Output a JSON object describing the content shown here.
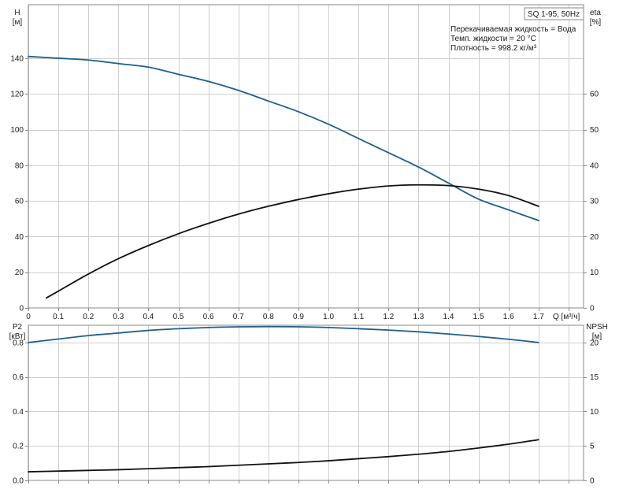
{
  "chart_data": {
    "type": "line",
    "title": "SQ 1-95, 50Hz",
    "notes": [
      "Перекачиваемая жидкость = Вода",
      "Темп. жидкости = 20 °C",
      "Плотность = 998.2 кг/м³"
    ],
    "x_axis": {
      "label": "Q [м³/ч]",
      "range": [
        0,
        1.85
      ],
      "ticks": [
        0,
        0.1,
        0.2,
        0.3,
        0.4,
        0.5,
        0.6,
        0.7,
        0.8,
        0.9,
        1.0,
        1.1,
        1.2,
        1.3,
        1.4,
        1.5,
        1.6,
        1.7
      ],
      "tick_labels": [
        "0",
        "0.1",
        "0.2",
        "0.3",
        "0.4",
        "0.5",
        "0.6",
        "0.7",
        "0.8",
        "0.9",
        "1.0",
        "1.1",
        "1.2",
        "1.3",
        "1.4",
        "1.5",
        "1.6",
        "1.7"
      ]
    },
    "top_panel": {
      "y_left": {
        "label_top": "H",
        "label_bottom": "[м]",
        "range": [
          0,
          170
        ],
        "ticks": [
          0,
          20,
          40,
          60,
          80,
          100,
          120,
          140
        ]
      },
      "y_right": {
        "label_top": "eta",
        "label_bottom": "[%]",
        "range": [
          0,
          85
        ],
        "ticks": [
          0,
          10,
          20,
          30,
          40,
          50,
          60
        ]
      },
      "series": [
        {
          "axis": "left",
          "color": "#1f5f8b",
          "x": [
            0,
            0.1,
            0.2,
            0.3,
            0.4,
            0.5,
            0.6,
            0.7,
            0.8,
            0.9,
            1.0,
            1.1,
            1.2,
            1.3,
            1.4,
            1.5,
            1.6,
            1.7
          ],
          "y": [
            141,
            140,
            139,
            137,
            135,
            131,
            127,
            122,
            116,
            110,
            103,
            95,
            87,
            79,
            70,
            61,
            55,
            49
          ]
        },
        {
          "axis": "right",
          "color": "#111111",
          "x": [
            0.06,
            0.1,
            0.2,
            0.3,
            0.4,
            0.5,
            0.6,
            0.7,
            0.8,
            0.9,
            1.0,
            1.1,
            1.2,
            1.3,
            1.4,
            1.5,
            1.6,
            1.7
          ],
          "y": [
            2.8,
            4.7,
            9.5,
            13.8,
            17.5,
            20.8,
            23.7,
            26.3,
            28.5,
            30.4,
            32.0,
            33.3,
            34.2,
            34.5,
            34.3,
            33.3,
            31.5,
            28.5
          ]
        }
      ]
    },
    "bottom_panel": {
      "y_left": {
        "label_top": "P2",
        "label_bottom": "[кВт]",
        "range": [
          0,
          0.9
        ],
        "ticks": [
          0,
          0.2,
          0.4,
          0.6,
          0.8
        ],
        "tick_labels": [
          "0.0",
          "0.2",
          "0.4",
          "0.6",
          "0.8"
        ]
      },
      "y_right": {
        "label_top": "NPSH",
        "label_bottom": "[м]",
        "range": [
          0,
          22.5
        ],
        "ticks": [
          0,
          5,
          10,
          15,
          20
        ]
      },
      "series": [
        {
          "axis": "left",
          "color": "#1f5f8b",
          "x": [
            0,
            0.1,
            0.2,
            0.3,
            0.4,
            0.5,
            0.6,
            0.7,
            0.8,
            0.9,
            1.0,
            1.1,
            1.2,
            1.3,
            1.4,
            1.5,
            1.6,
            1.7
          ],
          "y": [
            0.8,
            0.82,
            0.84,
            0.855,
            0.87,
            0.88,
            0.887,
            0.891,
            0.892,
            0.891,
            0.887,
            0.88,
            0.872,
            0.862,
            0.849,
            0.835,
            0.819,
            0.8
          ]
        },
        {
          "axis": "right",
          "color": "#111111",
          "x": [
            0,
            0.1,
            0.2,
            0.3,
            0.4,
            0.5,
            0.6,
            0.7,
            0.8,
            0.9,
            1.0,
            1.1,
            1.2,
            1.3,
            1.4,
            1.5,
            1.6,
            1.7
          ],
          "y": [
            1.25,
            1.35,
            1.45,
            1.55,
            1.7,
            1.85,
            2.0,
            2.2,
            2.4,
            2.6,
            2.85,
            3.15,
            3.45,
            3.8,
            4.2,
            4.7,
            5.25,
            5.9
          ]
        }
      ]
    }
  }
}
